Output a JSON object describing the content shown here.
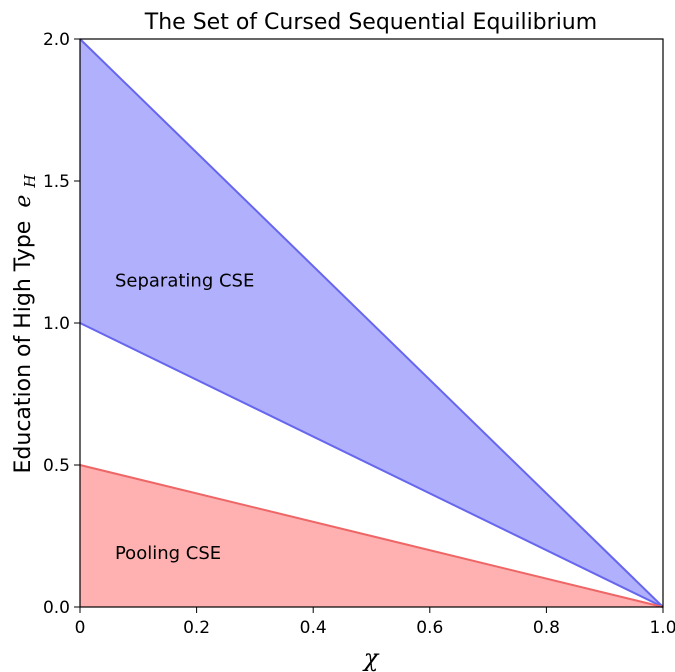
{
  "chart_data": {
    "type": "area",
    "title": "The Set of Cursed Sequential Equilibrium",
    "xlabel": "χ",
    "ylabel": "Education of High Type",
    "ylabel_symbol": "e",
    "ylabel_subscript": "H",
    "xlim": [
      0,
      1
    ],
    "ylim": [
      0,
      2
    ],
    "xticks": [
      0,
      0.2,
      0.4,
      0.6,
      0.8,
      1.0
    ],
    "xtick_labels": [
      "0",
      "0.2",
      "0.4",
      "0.6",
      "0.8",
      "1.0"
    ],
    "yticks": [
      0,
      0.5,
      1.0,
      1.5,
      2.0
    ],
    "ytick_labels": [
      "0.0",
      "0.5",
      "1.0",
      "1.5",
      "2.0"
    ],
    "grid": false,
    "series": [
      {
        "name": "Separating CSE",
        "fill_color": "#b0b0fc",
        "line_color": "#6666ee",
        "x": [
          0,
          1
        ],
        "lower": [
          1.0,
          0
        ],
        "upper": [
          2.0,
          0
        ],
        "label_at": [
          0.06,
          1.15
        ]
      },
      {
        "name": "Pooling CSE",
        "fill_color": "#ffb0b0",
        "line_color": "#ee6666",
        "x": [
          0,
          1
        ],
        "lower": [
          0,
          0
        ],
        "upper": [
          0.5,
          0
        ],
        "label_at": [
          0.06,
          0.19
        ]
      }
    ]
  }
}
